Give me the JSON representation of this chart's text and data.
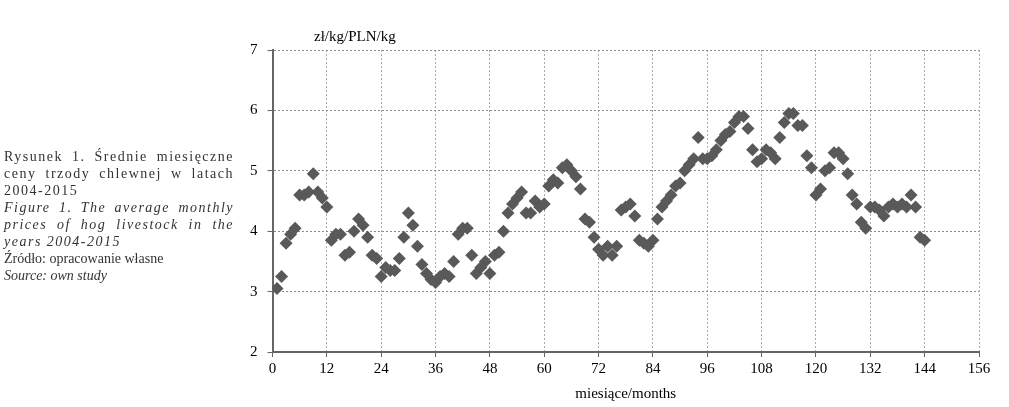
{
  "chart_data": {
    "type": "scatter",
    "ylabel": "zł/kg/PLN/kg",
    "xlabel": "miesiące/months",
    "annotations": [
      "Rysunek 1. Średnie miesięczne ceny trzody chlewnej w latach 2004-2015",
      "Figure 1. The average monthly prices of hog livestock in the years 2004-2015",
      "Źródło: opracowanie własne",
      "Source: own study"
    ],
    "x": [
      1,
      2,
      3,
      4,
      5,
      6,
      7,
      8,
      9,
      10,
      11,
      12,
      13,
      14,
      15,
      16,
      17,
      18,
      19,
      20,
      21,
      22,
      23,
      24,
      25,
      26,
      27,
      28,
      29,
      30,
      31,
      32,
      33,
      34,
      35,
      36,
      37,
      38,
      39,
      40,
      41,
      42,
      43,
      44,
      45,
      46,
      47,
      48,
      49,
      50,
      51,
      52,
      53,
      54,
      55,
      56,
      57,
      58,
      59,
      60,
      61,
      62,
      63,
      64,
      65,
      66,
      67,
      68,
      69,
      70,
      71,
      72,
      73,
      74,
      75,
      76,
      77,
      78,
      79,
      80,
      81,
      82,
      83,
      84,
      85,
      86,
      87,
      88,
      89,
      90,
      91,
      92,
      93,
      94,
      95,
      96,
      97,
      98,
      99,
      100,
      101,
      102,
      103,
      104,
      105,
      106,
      107,
      108,
      109,
      110,
      111,
      112,
      113,
      114,
      115,
      116,
      117,
      118,
      119,
      120,
      121,
      122,
      123,
      124,
      125,
      126,
      127,
      128,
      129,
      130,
      131,
      132,
      133,
      134,
      135,
      136,
      137,
      138,
      139,
      140,
      141,
      142,
      143,
      144
    ],
    "series": [
      {
        "color": "#595959",
        "values": [
          3.05,
          3.25,
          3.8,
          3.95,
          4.05,
          4.6,
          4.6,
          4.65,
          4.95,
          4.65,
          4.55,
          4.4,
          3.85,
          3.95,
          3.95,
          3.6,
          3.65,
          4.0,
          4.2,
          4.1,
          3.9,
          3.6,
          3.55,
          3.25,
          3.4,
          3.35,
          3.35,
          3.55,
          3.9,
          4.3,
          4.1,
          3.75,
          3.45,
          3.3,
          3.2,
          3.15,
          3.25,
          3.3,
          3.25,
          3.5,
          3.95,
          4.05,
          4.05,
          3.6,
          3.3,
          3.4,
          3.5,
          3.3,
          3.6,
          3.65,
          4.0,
          4.3,
          4.45,
          4.55,
          4.65,
          4.3,
          4.3,
          4.5,
          4.4,
          4.45,
          4.75,
          4.85,
          4.8,
          5.05,
          5.1,
          5.0,
          4.9,
          4.7,
          4.2,
          4.15,
          3.9,
          3.7,
          3.6,
          3.75,
          3.6,
          3.75,
          4.35,
          4.4,
          4.45,
          4.25,
          3.85,
          3.8,
          3.75,
          3.85,
          4.2,
          4.4,
          4.5,
          4.6,
          4.75,
          4.8,
          5.0,
          5.1,
          5.2,
          5.55,
          5.2,
          5.2,
          5.25,
          5.35,
          5.5,
          5.6,
          5.65,
          5.8,
          5.9,
          5.9,
          5.7,
          5.35,
          5.15,
          5.2,
          5.35,
          5.3,
          5.2,
          5.55,
          5.8,
          5.95,
          5.95,
          5.75,
          5.75,
          5.25,
          5.05,
          4.6,
          4.7,
          5.0,
          5.05,
          5.3,
          5.3,
          5.2,
          4.95,
          4.6,
          4.45,
          4.15,
          4.05,
          4.4,
          4.4,
          4.35,
          4.25,
          4.4,
          4.45,
          4.4,
          4.45,
          4.4,
          4.6,
          4.4,
          3.9,
          3.85
        ]
      }
    ],
    "xlim": [
      0,
      156
    ],
    "xticks": [
      0,
      12,
      24,
      36,
      48,
      60,
      72,
      84,
      96,
      108,
      120,
      132,
      144,
      156
    ],
    "ylim": [
      2,
      7
    ],
    "yticks": [
      2,
      3,
      4,
      5,
      6,
      7
    ],
    "grid": true,
    "legend": false,
    "marker": "diamond"
  }
}
